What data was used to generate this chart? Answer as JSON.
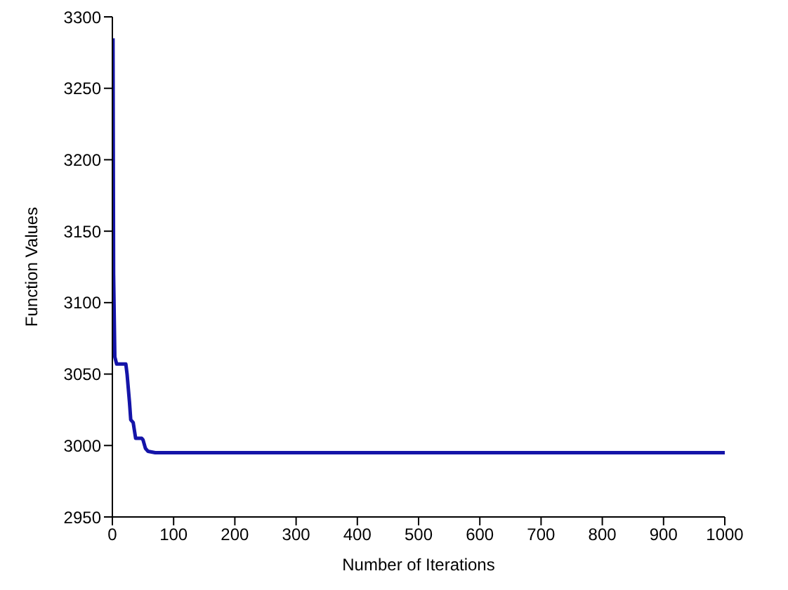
{
  "chart_data": {
    "type": "line",
    "xlabel": "Number of Iterations",
    "ylabel": "Function Values",
    "xlim": [
      0,
      1000
    ],
    "xticks": [
      0,
      100,
      200,
      300,
      400,
      500,
      600,
      700,
      800,
      900,
      1000
    ],
    "ylim": [
      2950,
      3300
    ],
    "yticks": [
      2950,
      3000,
      3050,
      3100,
      3150,
      3200,
      3250,
      3300
    ],
    "grid": false,
    "legend": false,
    "marker": "none",
    "line_style": "solid",
    "series": [
      {
        "color": "#1414a8",
        "x": [
          1,
          2,
          4,
          7,
          22,
          24,
          28,
          30,
          34,
          38,
          48,
          50,
          54,
          58,
          70,
          100,
          1000
        ],
        "values": [
          3285,
          3120,
          3062,
          3057,
          3057,
          3050,
          3030,
          3018,
          3016,
          3005,
          3005,
          3004,
          2998,
          2996,
          2995,
          2995,
          2995
        ]
      }
    ]
  }
}
